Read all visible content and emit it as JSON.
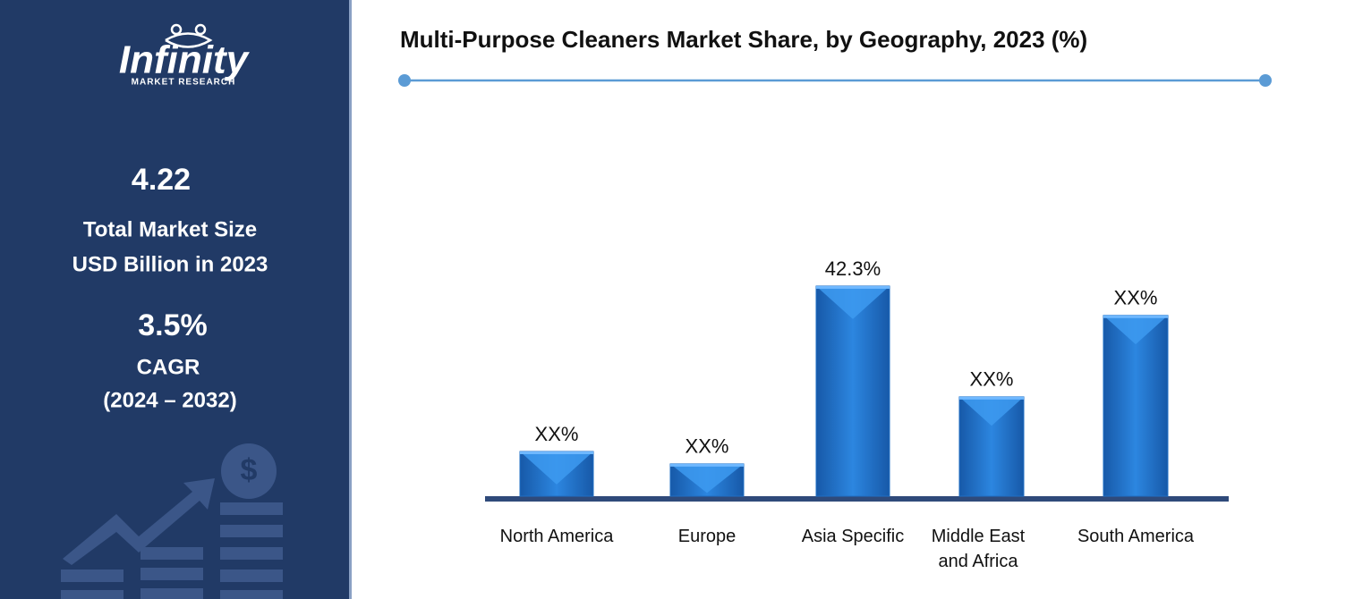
{
  "sidebar": {
    "logo": "Infinity",
    "logo_subtitle": "MARKET RESEARCH",
    "market_size": "4.22",
    "market_size_label_1": "Total Market Size",
    "market_size_label_2": "USD Billion in 2023",
    "cagr": "3.5%",
    "cagr_label": "CAGR",
    "cagr_period": "(2024 – 2032)"
  },
  "chart_data": {
    "type": "bar",
    "title": "Multi-Purpose Cleaners Market Share, by Geography, 2023 (%)",
    "categories": [
      "North America",
      "Europe",
      "Asia Specific",
      "Middle East and Africa",
      "South America"
    ],
    "values": [
      9.0,
      6.5,
      42.3,
      20.0,
      36.4
    ],
    "value_labels": [
      "XX%",
      "XX%",
      "42.3%",
      "XX%",
      "XX%"
    ],
    "color": "#1f6fc5"
  }
}
